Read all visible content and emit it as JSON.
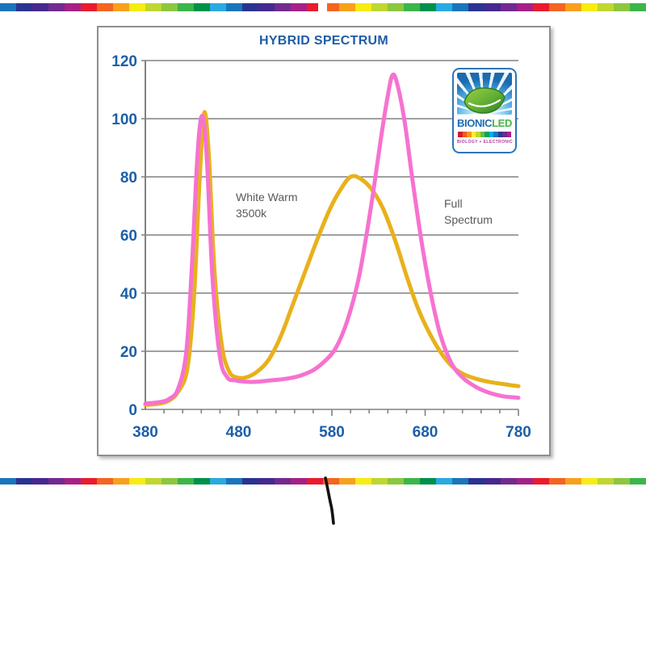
{
  "page": {
    "background": "#ffffff",
    "stripe_palette": [
      "#1b75bc",
      "#2b3390",
      "#46298e",
      "#722a8f",
      "#a62186",
      "#e81c2e",
      "#f26522",
      "#f7a11d",
      "#f7ec13",
      "#bfd730",
      "#8dc63f",
      "#3cb54a",
      "#00914a",
      "#29aae1"
    ],
    "top_stripe": {
      "block_width": 20,
      "gap_left": 394,
      "gap_width": 11
    },
    "bottom_stripe": {
      "block_width": 20
    },
    "pen_mark_color": "#111111"
  },
  "chart": {
    "title": "HYBRID SPECTRUM",
    "title_color": "#1e5ca6",
    "axis_label_color": "#1c5fa9",
    "grid_color": "#818181",
    "annotations": {
      "white_warm": {
        "lines": [
          "White Warm",
          "3500k"
        ]
      },
      "full_spectrum": {
        "lines": [
          "Full",
          "Spectrum"
        ]
      }
    }
  },
  "chart_data": {
    "type": "line",
    "title": "HYBRID SPECTRUM",
    "xlim": [
      380,
      780
    ],
    "ylim": [
      0,
      120
    ],
    "x_ticks": [
      380,
      480,
      580,
      680,
      780
    ],
    "x_minor_step": 20,
    "y_ticks": [
      0,
      20,
      40,
      60,
      80,
      100,
      120
    ],
    "grid": "horizontal",
    "legend_position": "inline-annotations",
    "series": [
      {
        "name": "White Warm 3500k",
        "color": "#e8b11c",
        "x": [
          380,
          395,
          405,
          415,
          425,
          432,
          438,
          443,
          448,
          454,
          462,
          470,
          478,
          488,
          500,
          512,
          525,
          538,
          552,
          565,
          578,
          590,
          600,
          610,
          622,
          635,
          648,
          660,
          672,
          685,
          698,
          710,
          722,
          735,
          748,
          762,
          775,
          780
        ],
        "y": [
          1.5,
          2,
          3,
          6,
          14,
          38,
          78,
          102,
          88,
          48,
          22,
          13,
          11,
          11,
          13,
          17,
          25,
          36,
          48,
          59,
          69,
          76,
          80,
          79.5,
          76,
          69,
          58,
          46,
          35,
          26,
          19,
          14.5,
          12,
          10.5,
          9.5,
          8.8,
          8.2,
          8
        ]
      },
      {
        "name": "Full Spectrum",
        "color": "#f672d0",
        "x": [
          380,
          395,
          405,
          415,
          424,
          430,
          436,
          441,
          446,
          452,
          460,
          468,
          476,
          488,
          500,
          515,
          530,
          545,
          560,
          572,
          584,
          596,
          608,
          616,
          624,
          632,
          640,
          645,
          650,
          658,
          666,
          676,
          686,
          696,
          708,
          720,
          734,
          748,
          762,
          776,
          780
        ],
        "y": [
          2,
          2.5,
          3.5,
          7,
          20,
          50,
          88,
          101,
          86,
          45,
          18,
          11,
          10,
          9.5,
          9.5,
          10,
          10.5,
          11.5,
          13.5,
          16.5,
          21,
          30,
          44,
          58,
          74,
          92,
          108,
          115,
          112,
          99,
          80,
          58,
          40,
          26,
          16,
          11,
          7.8,
          5.8,
          4.6,
          4.1,
          4
        ]
      }
    ]
  },
  "logo": {
    "brand_first": "BIONIC",
    "brand_second": "LED",
    "brand_first_color": "#1b6cb5",
    "brand_second_color": "#44b649",
    "tagline": "BIOLOGY + ELECTRONIC",
    "tagline_color": "#b43a9e",
    "border_color": "#2e75b6",
    "rainbow": [
      "#d01f28",
      "#f15a24",
      "#f7941d",
      "#f9ed32",
      "#bfd730",
      "#6abd45",
      "#00a65e",
      "#00aeef",
      "#1b75bc",
      "#2b3990",
      "#662d91",
      "#b01e83"
    ]
  }
}
